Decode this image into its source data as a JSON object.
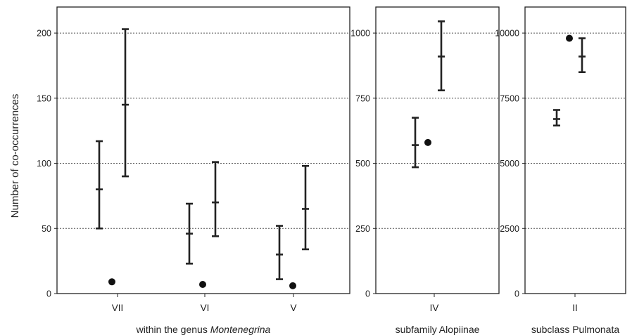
{
  "chart_data": {
    "type": "scatter",
    "ylabel": "Number of co-occurrences",
    "grid": "horizontal dotted",
    "panels": [
      {
        "label_pre": "within the genus ",
        "label_em": "Montenegrina",
        "label_post": "",
        "ylim": [
          0,
          220
        ],
        "yticks": [
          "0",
          "50",
          "100",
          "150",
          "200"
        ],
        "ytick_values": [
          0,
          50,
          100,
          150,
          200
        ],
        "categories": [
          "VII",
          "VI",
          "V"
        ],
        "expected": [
          {
            "mean": 80,
            "low": 50,
            "high": 117
          },
          {
            "mean": 145,
            "low": 90,
            "high": 203
          },
          {
            "mean": 46,
            "low": 23,
            "high": 69
          },
          {
            "mean": 70,
            "low": 44,
            "high": 101
          },
          {
            "mean": 30,
            "low": 11,
            "high": 52
          },
          {
            "mean": 65,
            "low": 34,
            "high": 98
          }
        ],
        "observed": [
          9,
          7,
          6
        ]
      },
      {
        "label_pre": "subfamily Alopiinae",
        "label_em": "",
        "label_post": "",
        "ylim": [
          0,
          1100
        ],
        "yticks": [
          "0",
          "250",
          "500",
          "750",
          "1000"
        ],
        "ytick_values": [
          0,
          250,
          500,
          750,
          1000
        ],
        "categories": [
          "IV"
        ],
        "expected": [
          {
            "mean": 570,
            "low": 485,
            "high": 675
          },
          {
            "mean": 910,
            "low": 780,
            "high": 1045
          }
        ],
        "observed": [
          580
        ]
      },
      {
        "label_pre": "subclass Pulmonata",
        "label_em": "",
        "label_post": "",
        "ylim": [
          0,
          11000
        ],
        "yticks": [
          "0",
          "2500",
          "5000",
          "7500",
          "10000"
        ],
        "ytick_values": [
          0,
          2500,
          5000,
          7500,
          10000
        ],
        "categories": [
          "II"
        ],
        "expected": [
          {
            "mean": 6700,
            "low": 6450,
            "high": 7050
          },
          {
            "mean": 9100,
            "low": 8500,
            "high": 9800
          }
        ],
        "observed": [
          9800
        ]
      }
    ]
  }
}
